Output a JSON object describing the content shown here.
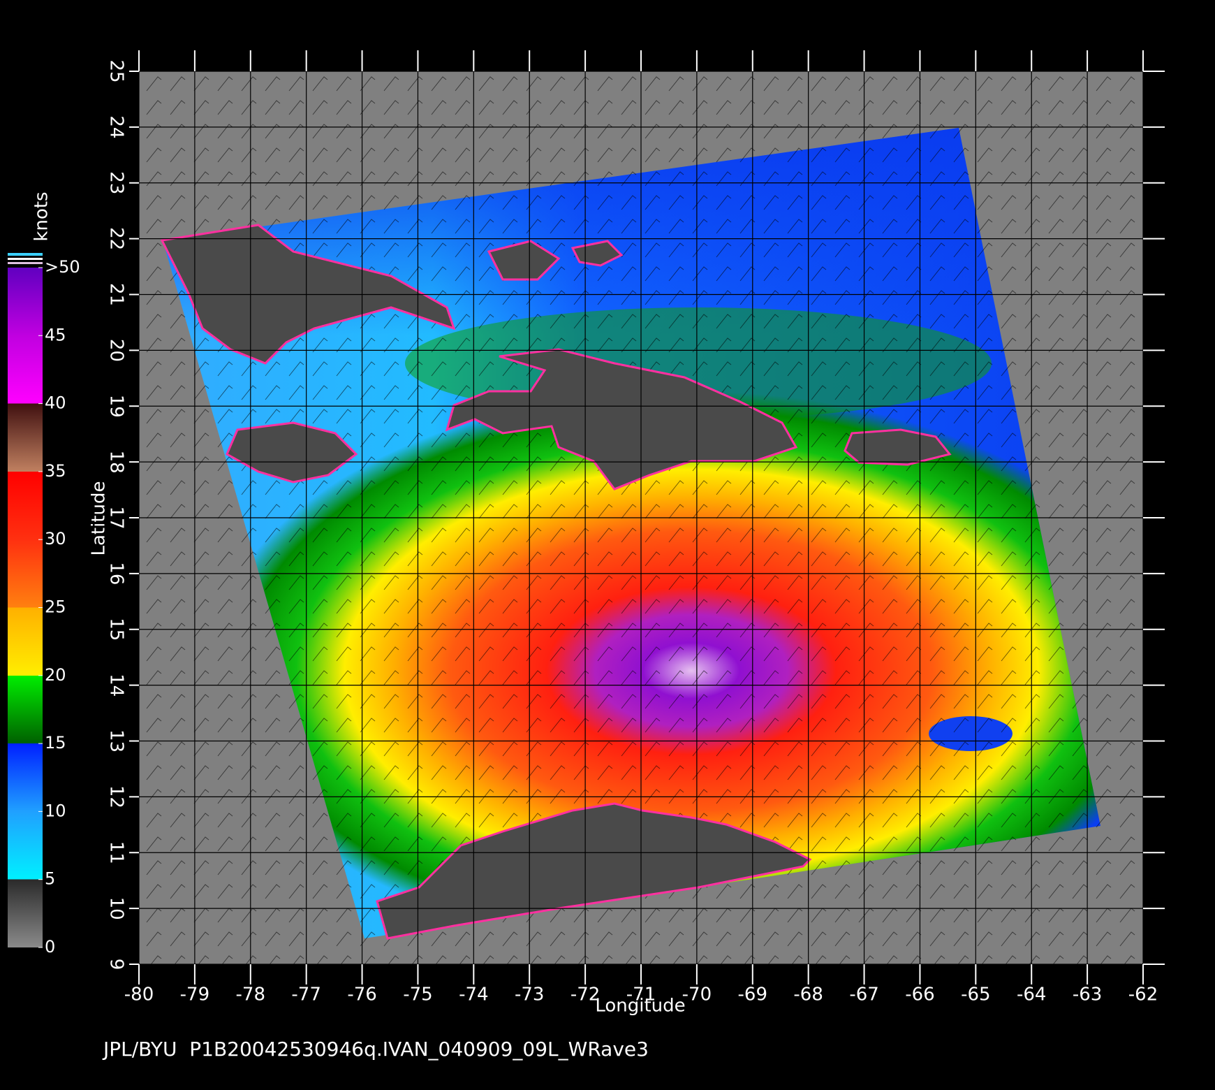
{
  "map": {
    "xlabel": "Longitude",
    "ylabel": "Latitude",
    "xlim": [
      -80,
      -62
    ],
    "ylim": [
      9,
      25
    ],
    "xticks": [
      -80,
      -79,
      -78,
      -77,
      -76,
      -75,
      -74,
      -73,
      -72,
      -71,
      -70,
      -69,
      -68,
      -67,
      -66,
      -65,
      -64,
      -63,
      -62
    ],
    "yticks": [
      9,
      10,
      11,
      12,
      13,
      14,
      15,
      16,
      17,
      18,
      19,
      20,
      21,
      22,
      23,
      24,
      25
    ],
    "grid": true,
    "footer": "JPL/BYU  P1B20042530946q.IVAN_040909_09L_WRave3"
  },
  "colorbar": {
    "label": "knots",
    "lim": [
      0,
      50
    ],
    "ticks": [
      0,
      5,
      10,
      15,
      20,
      25,
      30,
      35,
      40,
      45,
      {
        "value": 50,
        "label": ">50"
      }
    ]
  }
}
